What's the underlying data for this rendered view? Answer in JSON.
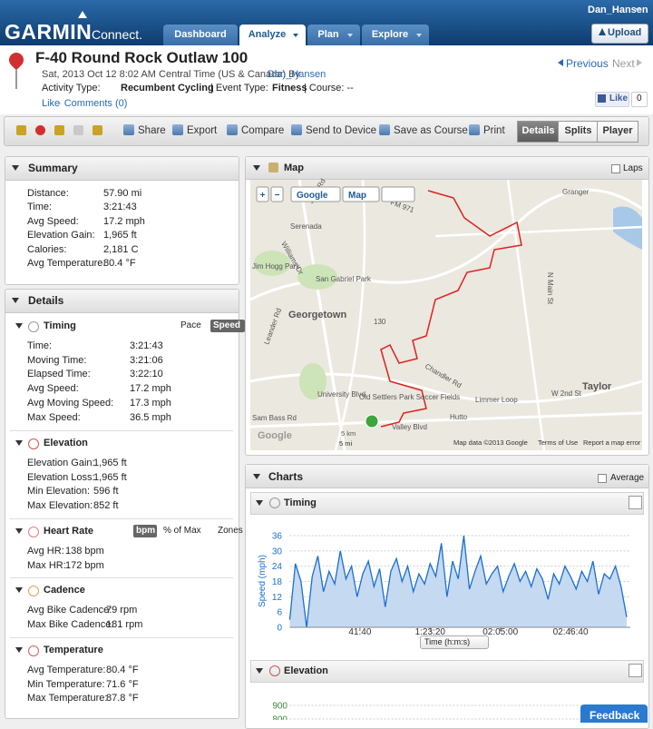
{
  "header": {
    "logo": "GARMIN",
    "logo_sub": "Connect.",
    "user": "Dan_Hansen",
    "upload": "Upload",
    "tabs": [
      "Dashboard",
      "Analyze",
      "Plan",
      "Explore"
    ],
    "active_tab": 1
  },
  "activity": {
    "title": "F-40 Round Rock Outlaw 100",
    "date": "Sat, 2013 Oct 12 8:02 AM Central Time (US & Canada) By",
    "author": "Dan_Hansen",
    "type_label": "Activity Type:",
    "type": "Recumbent Cycling",
    "event_label": "| Event Type:",
    "event": "Fitness",
    "course": "| Course: --",
    "like": "Like",
    "comments": "· Comments (0)",
    "previous": "Previous",
    "next": "Next",
    "fb_like": "Like",
    "fb_count": "0"
  },
  "toolbar": {
    "actions": [
      "Share",
      "Export",
      "Compare",
      "Send to Device",
      "Save as Course",
      "Print"
    ],
    "views": [
      "Details",
      "Splits",
      "Player"
    ],
    "active_view": 0
  },
  "summary": {
    "title": "Summary",
    "rows": [
      {
        "label": "Distance:",
        "value": "57.90 mi"
      },
      {
        "label": "Time:",
        "value": "3:21:43"
      },
      {
        "label": "Avg Speed:",
        "value": "17.2 mph"
      },
      {
        "label": "Elevation Gain:",
        "value": "1,965 ft"
      },
      {
        "label": "Calories:",
        "value": "2,181 C"
      },
      {
        "label": "Avg Temperature:",
        "value": "80.4 °F"
      }
    ]
  },
  "details": {
    "title": "Details",
    "sections": [
      {
        "title": "Timing",
        "toggles": [
          "Pace",
          "Speed"
        ],
        "active": 1,
        "rows": [
          {
            "label": "Time:",
            "value": "3:21:43"
          },
          {
            "label": "Moving Time:",
            "value": "3:21:06"
          },
          {
            "label": "Elapsed Time:",
            "value": "3:22:10"
          },
          {
            "label": "Avg Speed:",
            "value": "17.2 mph"
          },
          {
            "label": "Avg Moving Speed:",
            "value": "17.3 mph"
          },
          {
            "label": "Max Speed:",
            "value": "36.5 mph"
          }
        ]
      },
      {
        "title": "Elevation",
        "rows": [
          {
            "label": "Elevation Gain:",
            "value": "1,965 ft"
          },
          {
            "label": "Elevation Loss:",
            "value": "1,965 ft"
          },
          {
            "label": "Min Elevation:",
            "value": "596 ft"
          },
          {
            "label": "Max Elevation:",
            "value": "852 ft"
          }
        ]
      },
      {
        "title": "Heart Rate",
        "toggles": [
          "bpm",
          "% of Max",
          "Zones"
        ],
        "active": 0,
        "rows": [
          {
            "label": "Avg HR:",
            "value": "138 bpm"
          },
          {
            "label": "Max HR:",
            "value": "172 bpm"
          }
        ]
      },
      {
        "title": "Cadence",
        "rows": [
          {
            "label": "Avg Bike Cadence:",
            "value": "79 rpm"
          },
          {
            "label": "Max Bike Cadence:",
            "value": "181 rpm"
          }
        ]
      },
      {
        "title": "Temperature",
        "rows": [
          {
            "label": "Avg Temperature:",
            "value": "80.4 °F"
          },
          {
            "label": "Min Temperature:",
            "value": "71.6 °F"
          },
          {
            "label": "Max Temperature:",
            "value": "87.8 °F"
          }
        ]
      }
    ]
  },
  "map": {
    "title": "Map",
    "laps": "Laps",
    "controls": [
      "+",
      "−",
      "Google",
      "Map"
    ],
    "labels": [
      "Shell Rd",
      "Serenada",
      "Williams Dr",
      "Jim Hogg Park",
      "San Gabriel Park",
      "Georgetown",
      "Leander Rd",
      "University Blvd",
      "Old Settlers Park Soccer Fields",
      "Hutto",
      "Chandler Rd",
      "Limmer Loop",
      "Taylor",
      "W 2nd St",
      "Granger",
      "N Main St",
      "FM 971",
      "Sam Bass Rd",
      "Valley Blvd",
      "130",
      "Google",
      "5 km",
      "5 mi",
      "Map data ©2013 Google",
      "Terms of Use",
      "Report a map error"
    ]
  },
  "charts": {
    "title": "Charts",
    "average": "Average",
    "timing": {
      "type": "area",
      "title": "Timing",
      "y_label": "Speed (mph)",
      "x_selector": "Time (h:m:s)",
      "color": "#1a6fd0",
      "x": [
        0,
        200,
        400,
        600,
        800,
        1000,
        1200,
        1400,
        1600,
        1800,
        2000,
        2200,
        2400,
        2600,
        2800,
        3000,
        3200,
        3400,
        3600,
        3800,
        4000,
        4200,
        4400,
        4600,
        4800,
        5000,
        5200,
        5400,
        5600,
        5800,
        6000,
        6200,
        6400,
        6600,
        6800,
        7000,
        7200,
        7400,
        7600,
        7800,
        8000,
        8200,
        8400,
        8600,
        8800,
        9000,
        9200,
        9400,
        9600,
        9800,
        10000,
        10200,
        10400,
        10600,
        10800,
        11000,
        11200,
        11400,
        11600,
        11800,
        12000
      ],
      "values": [
        3,
        25,
        18,
        0,
        20,
        28,
        14,
        22,
        17,
        30,
        19,
        24,
        12,
        21,
        26,
        16,
        23,
        8,
        22,
        27,
        18,
        24,
        14,
        21,
        17,
        25,
        20,
        33,
        12,
        26,
        19,
        36,
        15,
        22,
        28,
        17,
        21,
        24,
        14,
        20,
        25,
        18,
        22,
        16,
        23,
        19,
        11,
        21,
        17,
        24,
        20,
        15,
        22,
        18,
        26,
        13,
        21,
        19,
        24,
        16,
        4
      ],
      "xlim": [
        0,
        12130
      ],
      "ylim": [
        0,
        36
      ],
      "yticks": [
        0,
        6,
        12,
        18,
        24,
        30,
        36
      ],
      "xticks": [
        {
          "value": 2500,
          "label": "41:40"
        },
        {
          "value": 5000,
          "label": "1:23:20"
        },
        {
          "value": 7500,
          "label": "02:05:00"
        },
        {
          "value": 10000,
          "label": "02:46:40"
        }
      ],
      "grid": true
    },
    "elevation": {
      "type": "line",
      "title": "Elevation",
      "ylim": [
        600,
        960
      ],
      "yticks": [
        800,
        900
      ],
      "grid": true
    }
  },
  "feedback": "Feedback"
}
